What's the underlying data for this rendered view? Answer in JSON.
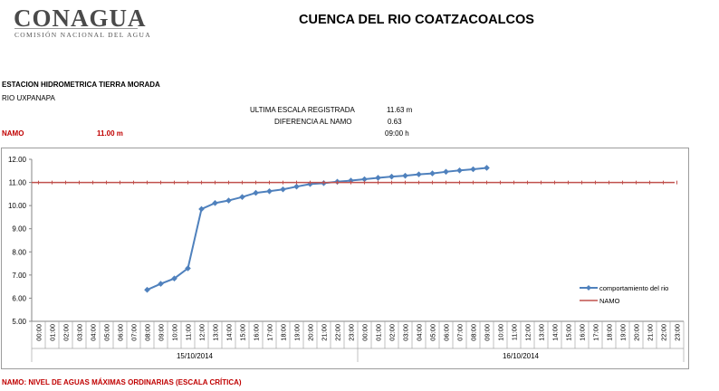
{
  "header": {
    "logo_text": "CONAGUA",
    "logo_subtitle": "COMISIÓN NACIONAL DEL AGUA",
    "title": "CUENCA DEL RIO COATZACOALCOS"
  },
  "station": {
    "name": "ESTACION HIDROMETRICA TIERRA MORADA",
    "river": "RIO UXPANAPA"
  },
  "readings": {
    "ultima_label": "ULTIMA ESCALA REGISTRADA",
    "ultima_value": "11.63  m",
    "diferencia_label": "DIFERENCIA AL NAMO",
    "diferencia_value": "0.63",
    "hora_value": "09:00  h"
  },
  "namo": {
    "label": "NAMO",
    "value": "11.00  m"
  },
  "footnote": "NAMO: NIVEL DE AGUAS MÁXIMAS ORDINARIAS (ESCALA CRÍTICA)",
  "colors": {
    "series": "#4f81bd",
    "namo": "#c0504d",
    "red_text": "#c00000"
  },
  "chart_data": {
    "type": "line",
    "ylim": [
      5.0,
      12.0
    ],
    "y_ticks": [
      "5.00",
      "6.00",
      "7.00",
      "8.00",
      "9.00",
      "10.00",
      "11.00",
      "12.00"
    ],
    "x_labels": [
      "00:00",
      "01:00",
      "02:00",
      "03:00",
      "04:00",
      "05:00",
      "06:00",
      "07:00",
      "08:00",
      "09:00",
      "10:00",
      "11:00",
      "12:00",
      "13:00",
      "14:00",
      "15:00",
      "16:00",
      "17:00",
      "18:00",
      "19:00",
      "20:00",
      "21:00",
      "22:00",
      "23:00",
      "00:00",
      "01:00",
      "02:00",
      "03:00",
      "04:00",
      "05:00",
      "06:00",
      "07:00",
      "08:00",
      "09:00",
      "10:00",
      "11:00",
      "12:00",
      "13:00",
      "14:00",
      "15:00",
      "16:00",
      "17:00",
      "18:00",
      "19:00",
      "20:00",
      "21:00",
      "22:00",
      "23:00"
    ],
    "date_groups": [
      {
        "label": "15/10/2014",
        "start": 0,
        "count": 24
      },
      {
        "label": "16/10/2014",
        "start": 24,
        "count": 24
      }
    ],
    "grid": false,
    "legend_position": "right",
    "series": [
      {
        "name": "comportamiento del rio",
        "values": [
          null,
          null,
          null,
          null,
          null,
          null,
          null,
          null,
          6.36,
          6.62,
          6.85,
          7.29,
          9.85,
          10.11,
          10.22,
          10.37,
          10.55,
          10.62,
          10.7,
          10.82,
          10.93,
          10.97,
          11.03,
          11.08,
          11.14,
          11.2,
          11.25,
          11.29,
          11.35,
          11.39,
          11.46,
          11.52,
          11.57,
          11.63,
          null,
          null,
          null,
          null,
          null,
          null,
          null,
          null,
          null,
          null,
          null,
          null,
          null,
          null
        ]
      },
      {
        "name": "NAMO",
        "values": [
          11.0,
          11.0,
          11.0,
          11.0,
          11.0,
          11.0,
          11.0,
          11.0,
          11.0,
          11.0,
          11.0,
          11.0,
          11.0,
          11.0,
          11.0,
          11.0,
          11.0,
          11.0,
          11.0,
          11.0,
          11.0,
          11.0,
          11.0,
          11.0,
          11.0,
          11.0,
          11.0,
          11.0,
          11.0,
          11.0,
          11.0,
          11.0,
          11.0,
          11.0,
          11.0,
          11.0,
          11.0,
          11.0,
          11.0,
          11.0,
          11.0,
          11.0,
          11.0,
          11.0,
          11.0,
          11.0,
          11.0,
          11.0
        ]
      }
    ]
  }
}
